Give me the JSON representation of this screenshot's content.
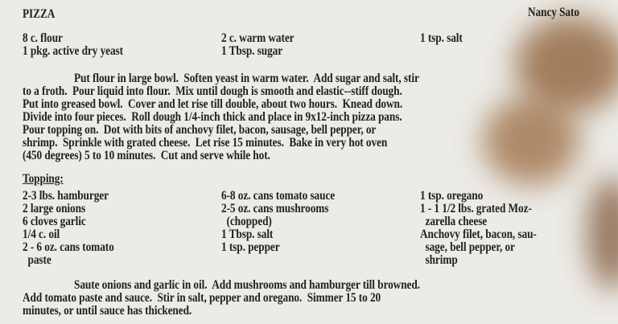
{
  "title": "PIZZA",
  "author": "Nancy Sato",
  "dough_ingredients": {
    "col1": [
      "8 c. flour",
      "1 pkg. active dry yeast"
    ],
    "col2": [
      "2 c. warm water",
      "1 Tbsp. sugar"
    ],
    "col3": [
      "1 tsp. salt"
    ]
  },
  "dough_directions": [
    "Put flour in large bowl.  Soften yeast in warm water.  Add sugar and salt, stir",
    "to a froth.  Pour liquid into flour.  Mix until dough is smooth and elastic--stiff dough.",
    "Put into greased bowl.  Cover and let rise till double, about two hours.  Knead down.",
    "Divide into four pieces.  Roll dough 1/4-inch thick and place in 9x12-inch pizza pans.",
    "Pour topping on.  Dot with bits of anchovy filet, bacon, sausage, bell pepper, or",
    "shrimp.  Sprinkle with grated cheese.  Let rise 15 minutes.  Bake in very hot oven",
    "(450 degrees) 5 to 10 minutes.  Cut and serve while hot."
  ],
  "topping_heading": "Topping:",
  "topping_ingredients": {
    "col1": [
      "2-3 lbs. hamburger",
      "2 large onions",
      "6 cloves garlic",
      "1/4 c. oil",
      "2 - 6 oz. cans tomato",
      "  paste"
    ],
    "col2": [
      "6-8 oz. cans tomato sauce",
      "2-5 oz. cans mushrooms",
      "  (chopped)",
      "1 Tbsp. salt",
      "1 tsp. pepper"
    ],
    "col3": [
      "1 tsp. oregano",
      "1 - 1 1/2 lbs. grated Moz-",
      "  zarella cheese",
      "Anchovy filet, bacon, sau-",
      "  sage, bell pepper, or",
      "  shrimp"
    ]
  },
  "topping_directions": [
    "Saute onions and garlic in oil.  Add mushrooms and hamburger till browned.",
    "Add tomato paste and sauce.  Stir in salt, pepper and oregano.  Simmer 15 to 20",
    "minutes, or until sauce has thickened."
  ]
}
